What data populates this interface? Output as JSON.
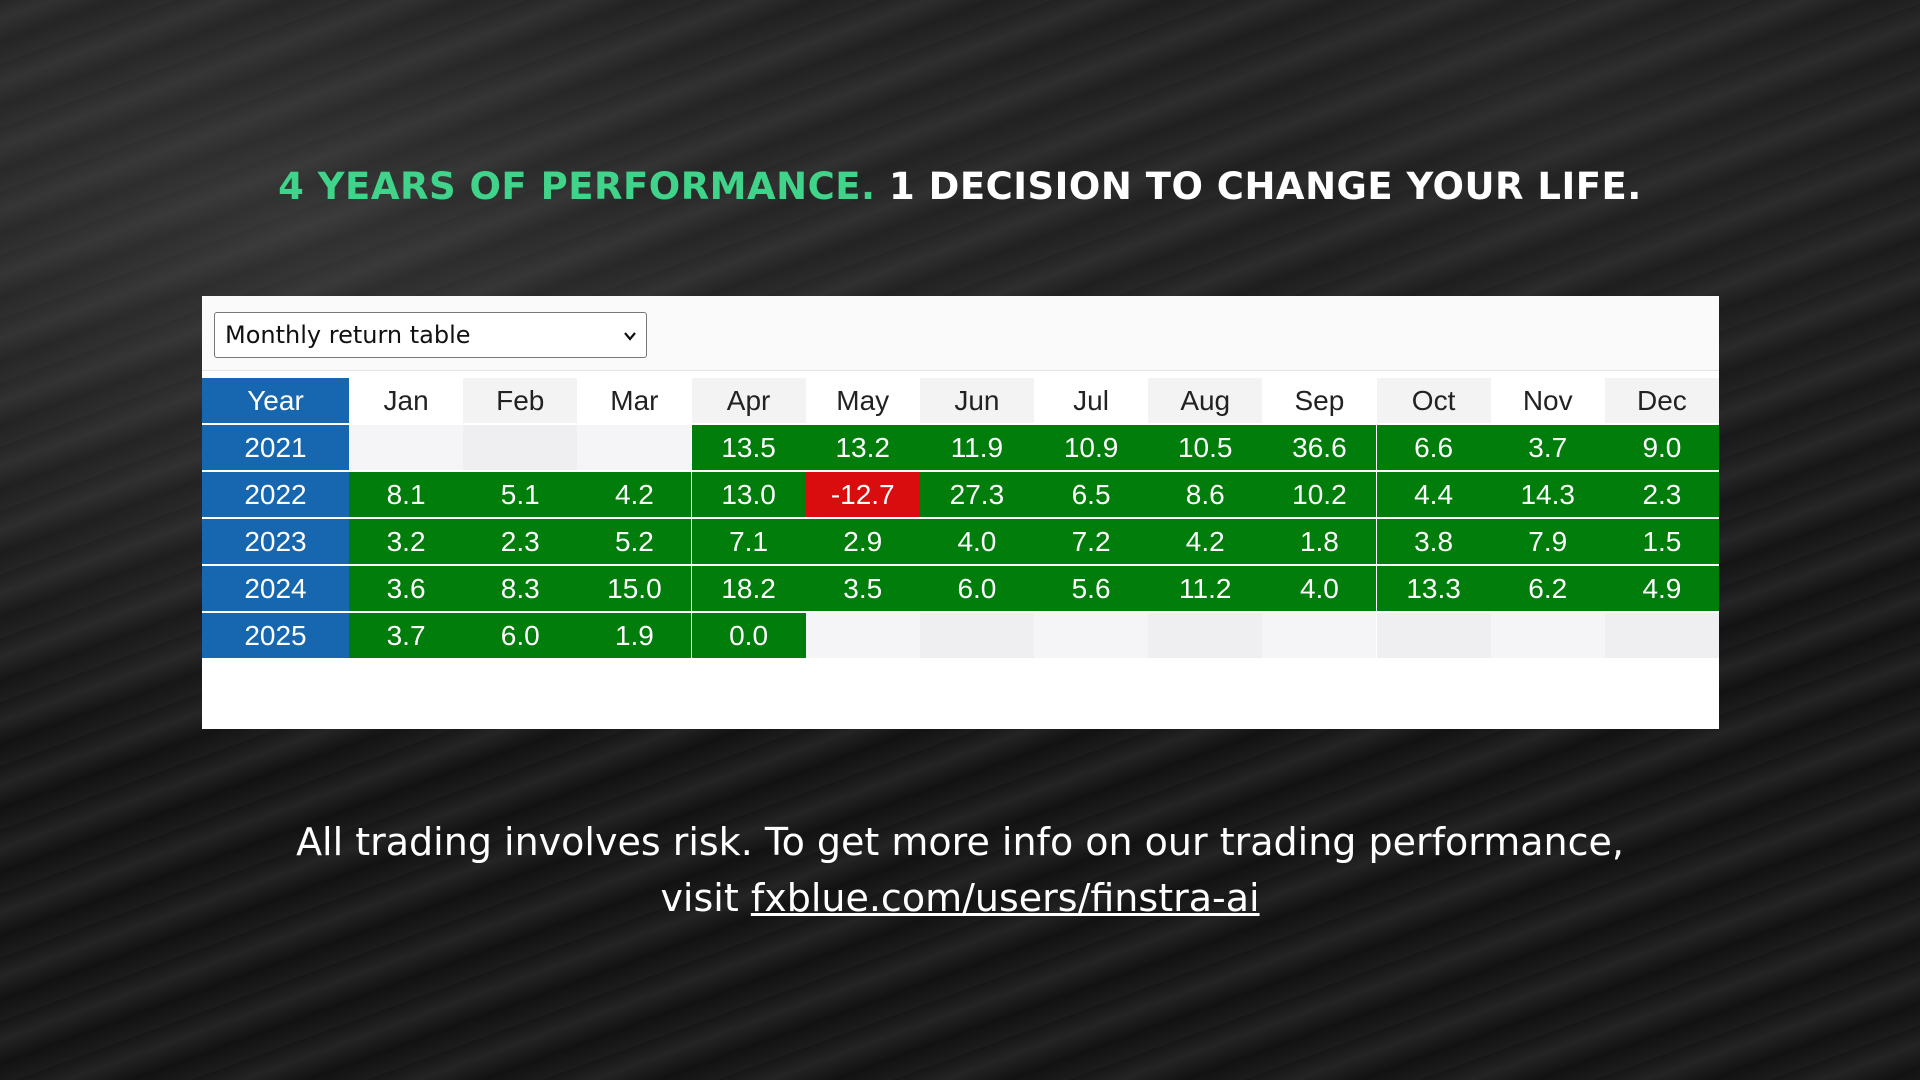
{
  "header": {
    "title_highlight": "4 YEARS OF PERFORMANCE.",
    "title_rest": "1 DECISION TO CHANGE YOUR LIFE."
  },
  "dropdown": {
    "selected": "Monthly return table"
  },
  "table": {
    "columns": [
      "Year",
      "Jan",
      "Feb",
      "Mar",
      "Apr",
      "May",
      "Jun",
      "Jul",
      "Aug",
      "Sep",
      "Oct",
      "Nov",
      "Dec"
    ],
    "rows": [
      [
        "2021",
        null,
        null,
        null,
        "13.5",
        "13.2",
        "11.9",
        "10.9",
        "10.5",
        "36.6",
        "6.6",
        "3.7",
        "9.0"
      ],
      [
        "2022",
        "8.1",
        "5.1",
        "4.2",
        "13.0",
        "-12.7",
        "27.3",
        "6.5",
        "8.6",
        "10.2",
        "4.4",
        "14.3",
        "2.3"
      ],
      [
        "2023",
        "3.2",
        "2.3",
        "5.2",
        "7.1",
        "2.9",
        "4.0",
        "7.2",
        "4.2",
        "1.8",
        "3.8",
        "7.9",
        "1.5"
      ],
      [
        "2024",
        "3.6",
        "8.3",
        "15.0",
        "18.2",
        "3.5",
        "6.0",
        "5.6",
        "11.2",
        "4.0",
        "13.3",
        "6.2",
        "4.9"
      ],
      [
        "2025",
        "3.7",
        "6.0",
        "1.9",
        "0.0",
        null,
        null,
        null,
        null,
        null,
        null,
        null,
        null
      ]
    ]
  },
  "colors": {
    "positive": "#007d0a",
    "negative": "#d90d0d",
    "year": "#1766b0"
  },
  "footer": {
    "line1": "All trading involves risk. To get more info on our trading performance,",
    "line2_prefix": "visit",
    "link": "fxblue.com/users/finstra-ai"
  }
}
